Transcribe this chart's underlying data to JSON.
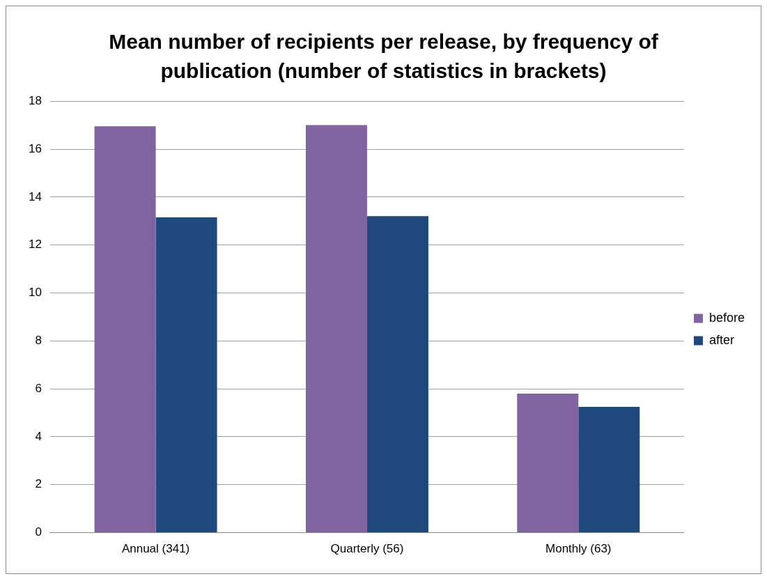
{
  "chart_data": {
    "type": "bar",
    "title": "Mean number of recipients per release, by frequency of publication (number of statistics in brackets)",
    "categories": [
      "Annual (341)",
      "Quarterly (56)",
      "Monthly (63)"
    ],
    "series": [
      {
        "name": "before",
        "color": "#8064a2",
        "values": [
          16.95,
          17.0,
          5.8
        ]
      },
      {
        "name": "after",
        "color": "#1f497d",
        "values": [
          13.15,
          13.2,
          5.25
        ]
      }
    ],
    "ylim": [
      0,
      18
    ],
    "yticks": [
      0,
      2,
      4,
      6,
      8,
      10,
      12,
      14,
      16,
      18
    ],
    "grid": "y",
    "legend": "right"
  }
}
